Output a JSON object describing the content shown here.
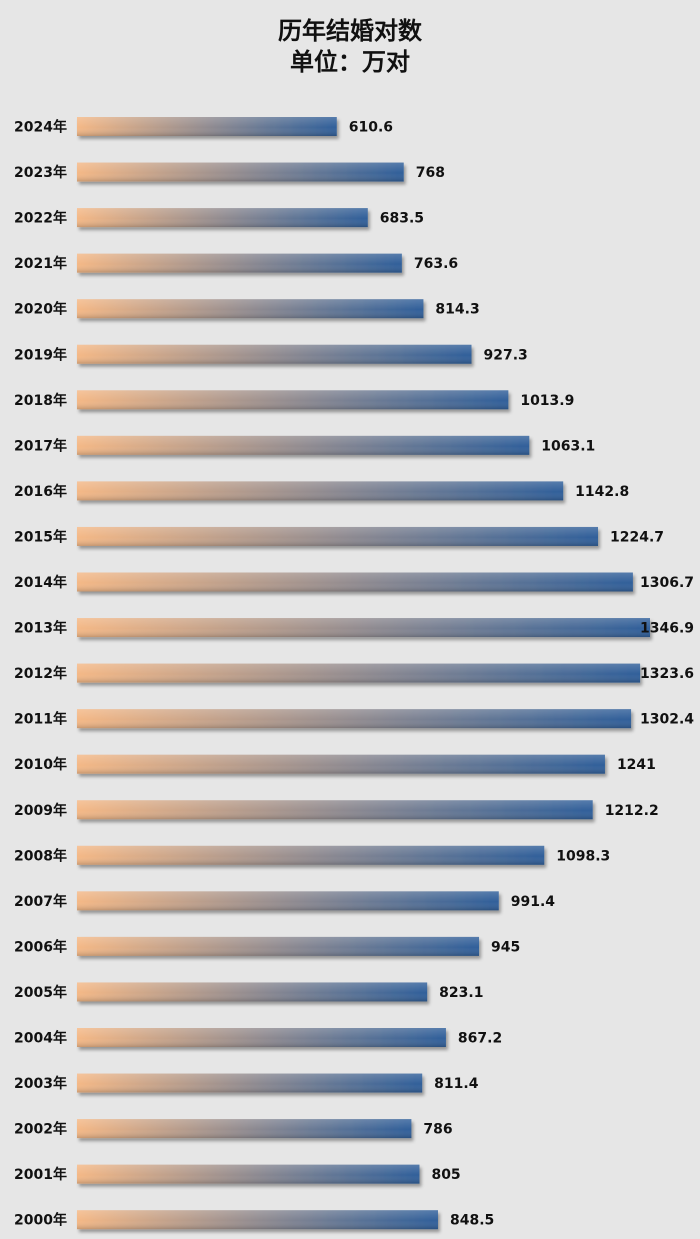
{
  "chart_data": {
    "type": "bar",
    "orientation": "horizontal",
    "title": "历年结婚对数",
    "subtitle": "单位：万对",
    "categories": [
      "2024年",
      "2023年",
      "2022年",
      "2021年",
      "2020年",
      "2019年",
      "2018年",
      "2017年",
      "2016年",
      "2015年",
      "2014年",
      "2013年",
      "2012年",
      "2011年",
      "2010年",
      "2009年",
      "2008年",
      "2007年",
      "2006年",
      "2005年",
      "2004年",
      "2003年",
      "2002年",
      "2001年",
      "2000年"
    ],
    "values": [
      610.6,
      768,
      683.5,
      763.6,
      814.3,
      927.3,
      1013.9,
      1063.1,
      1142.8,
      1224.7,
      1306.7,
      1346.9,
      1323.6,
      1302.4,
      1241,
      1212.2,
      1098.3,
      991.4,
      945,
      823.1,
      867.2,
      811.4,
      786,
      805,
      848.5
    ],
    "value_labels": [
      "610.6",
      "768",
      "683.5",
      "763.6",
      "814.3",
      "927.3",
      "1013.9",
      "1063.1",
      "1142.8",
      "1224.7",
      "1306.7",
      "1346.9",
      "1323.6",
      "1302.4",
      "1241",
      "1212.2",
      "1098.3",
      "991.4",
      "945",
      "823.1",
      "867.2",
      "811.4",
      "786",
      "805",
      "848.5"
    ],
    "xlim": [
      0,
      1346.9
    ],
    "grid": false,
    "colors": {
      "bar_start": "#f4b886",
      "bar_end": "#2f5f9a",
      "background": "#e6e6e6"
    }
  }
}
